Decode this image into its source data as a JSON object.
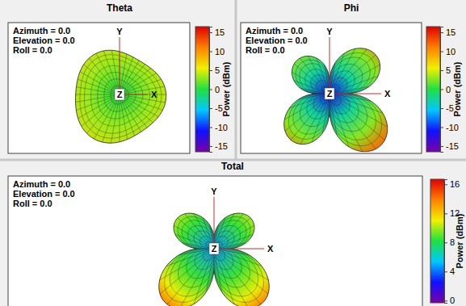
{
  "chart_data": [
    {
      "type": "surface3d",
      "title": "Theta",
      "annotations": [
        "Azimuth = 0.0",
        "Elevation = 0.0",
        "Roll = 0.0"
      ],
      "axis_labels": [
        "X",
        "Y",
        "Z"
      ],
      "colorbar_label": "Power (dBm)",
      "colorbar_lim": [
        -16.5,
        16.5
      ],
      "colorbar_ticks": [
        15,
        10,
        5,
        0,
        -5,
        -10,
        -15
      ]
    },
    {
      "type": "surface3d",
      "title": "Phi",
      "annotations": [
        "Azimuth = 0.0",
        "Elevation = 0.0",
        "Roll = 0.0"
      ],
      "axis_labels": [
        "X",
        "Y",
        "Z"
      ],
      "colorbar_label": "Power (dBm)",
      "colorbar_lim": [
        -16.5,
        16.5
      ],
      "colorbar_ticks": [
        15,
        10,
        5,
        0,
        -5,
        -10,
        -15
      ]
    },
    {
      "type": "surface3d",
      "title": "Total",
      "annotations": [
        "Azimuth = 0.0",
        "Elevation = 0.0",
        "Roll = 0.0"
      ],
      "axis_labels": [
        "X",
        "Y",
        "Z"
      ],
      "colorbar_label": "Power (dBm)",
      "colorbar_lim": [
        -0.3,
        16.7
      ],
      "colorbar_ticks": [
        16,
        12,
        8,
        4,
        0
      ]
    }
  ]
}
